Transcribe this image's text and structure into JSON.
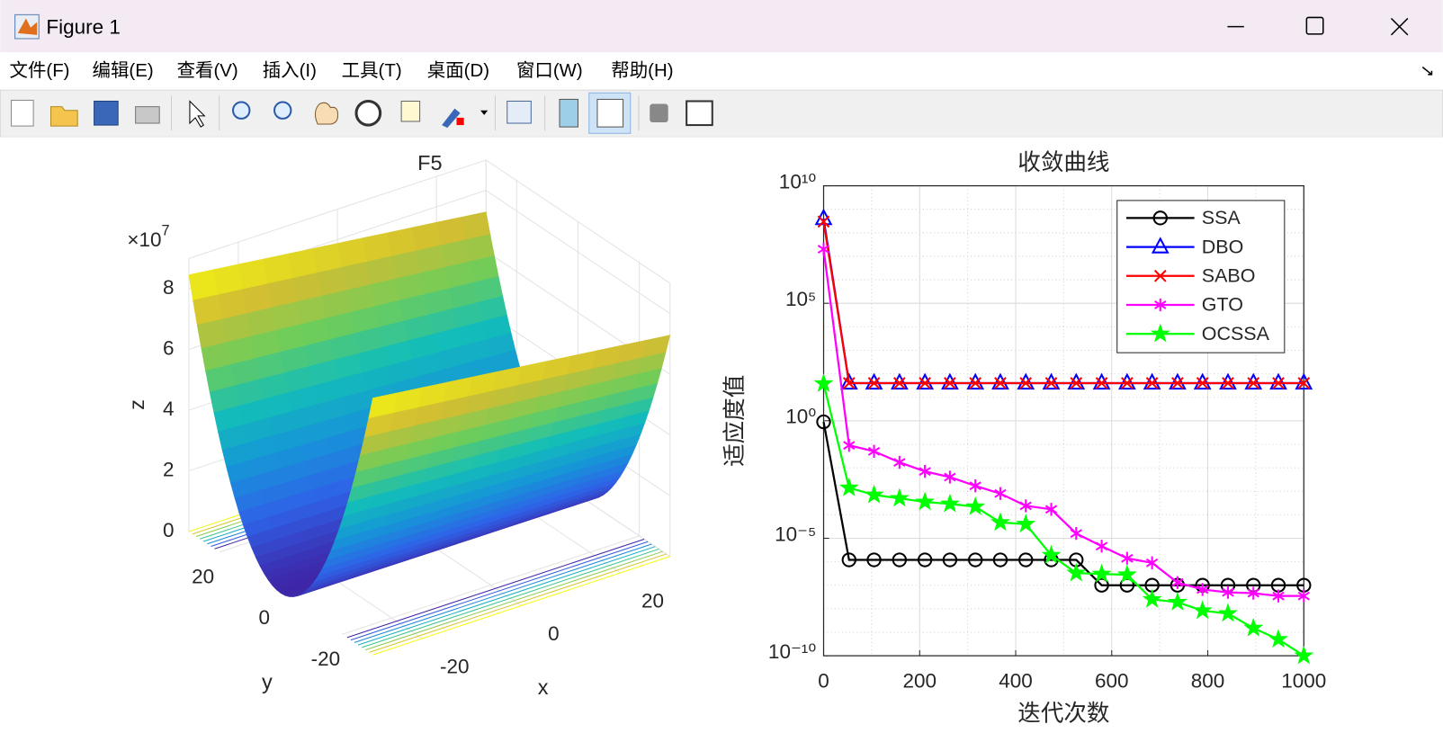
{
  "window": {
    "title": "Figure 1"
  },
  "menu": [
    "文件(F)",
    "编辑(E)",
    "查看(V)",
    "插入(I)",
    "工具(T)",
    "桌面(D)",
    "窗口(W)",
    "帮助(H)"
  ],
  "chart_data": [
    {
      "type": "surface",
      "title": "F5",
      "xlabel": "x",
      "ylabel": "y",
      "zlabel": "z",
      "xlim": [
        -30,
        30
      ],
      "ylim": [
        -30,
        30
      ],
      "zlim": [
        0,
        9
      ],
      "xticks": [
        -20,
        0,
        20
      ],
      "yticks": [
        -20,
        0,
        20
      ],
      "zticks": [
        0,
        2,
        4,
        6,
        8
      ],
      "zscale": {
        "base": "×10",
        "exponent": "7"
      },
      "grid": true,
      "colormap": "parula"
    },
    {
      "type": "line",
      "title": "收敛曲线",
      "xlabel": "迭代次数",
      "ylabel": "适应度值",
      "x": [
        0,
        53,
        105,
        158,
        211,
        263,
        316,
        368,
        421,
        474,
        526,
        579,
        632,
        684,
        737,
        789,
        842,
        895,
        947,
        1000
      ],
      "series": [
        {
          "name": "SSA",
          "color": "#000000",
          "marker": "circle",
          "values": [
            0.9,
            1.2e-06,
            1.2e-06,
            1.2e-06,
            1.2e-06,
            1.2e-06,
            1.2e-06,
            1.2e-06,
            1.2e-06,
            1.2e-06,
            1.2e-06,
            1e-07,
            1e-07,
            1e-07,
            1e-07,
            1e-07,
            1e-07,
            1e-07,
            1e-07,
            1e-07
          ]
        },
        {
          "name": "DBO",
          "color": "#0000ff",
          "marker": "triangle",
          "values": [
            400000000.0,
            40,
            40,
            40,
            40,
            40,
            40,
            40,
            40,
            40,
            40,
            40,
            40,
            40,
            40,
            40,
            40,
            40,
            40,
            40
          ]
        },
        {
          "name": "SABO",
          "color": "#ff0000",
          "marker": "x",
          "values": [
            300000000.0,
            40,
            40,
            40,
            40,
            40,
            40,
            40,
            40,
            40,
            40,
            40,
            40,
            40,
            40,
            40,
            40,
            40,
            40,
            40
          ]
        },
        {
          "name": "GTO",
          "color": "#ff00ff",
          "marker": "asterisk",
          "values": [
            20000000.0,
            0.09,
            0.05,
            0.017,
            0.007,
            0.004,
            0.0017,
            0.0008,
            0.00024,
            0.00017,
            1.6e-05,
            4.6e-06,
            1.4e-06,
            9e-07,
            1.3e-07,
            6.6e-08,
            5e-08,
            4.6e-08,
            3.5e-08,
            3.5e-08
          ]
        },
        {
          "name": "OCSSA",
          "color": "#00ff00",
          "marker": "pentagram",
          "values": [
            38,
            0.0014,
            0.0007,
            0.0005,
            0.00035,
            0.00029,
            0.00022,
            4.7e-05,
            4e-05,
            1.9e-06,
            3.3e-07,
            3e-07,
            2.8e-07,
            2.5e-08,
            1.9e-08,
            8.3e-09,
            6.3e-09,
            1.5e-09,
            5e-10,
            1e-10
          ]
        }
      ],
      "xlim": [
        0,
        1000
      ],
      "ylim": [
        1e-10,
        10000000000.0
      ],
      "yscale": "log",
      "xticks": [
        0,
        200,
        400,
        600,
        800,
        1000
      ],
      "yticks": [
        {
          "value": 1e-10,
          "label": "10⁻¹⁰"
        },
        {
          "value": 1e-05,
          "label": "10⁻⁵"
        },
        {
          "value": 1,
          "label": "10⁰"
        },
        {
          "value": 100000,
          "label": "10⁵"
        },
        {
          "value": 10000000000,
          "label": "10¹⁰"
        }
      ],
      "grid": true,
      "minor_grid": true,
      "legend": "upper right"
    }
  ]
}
